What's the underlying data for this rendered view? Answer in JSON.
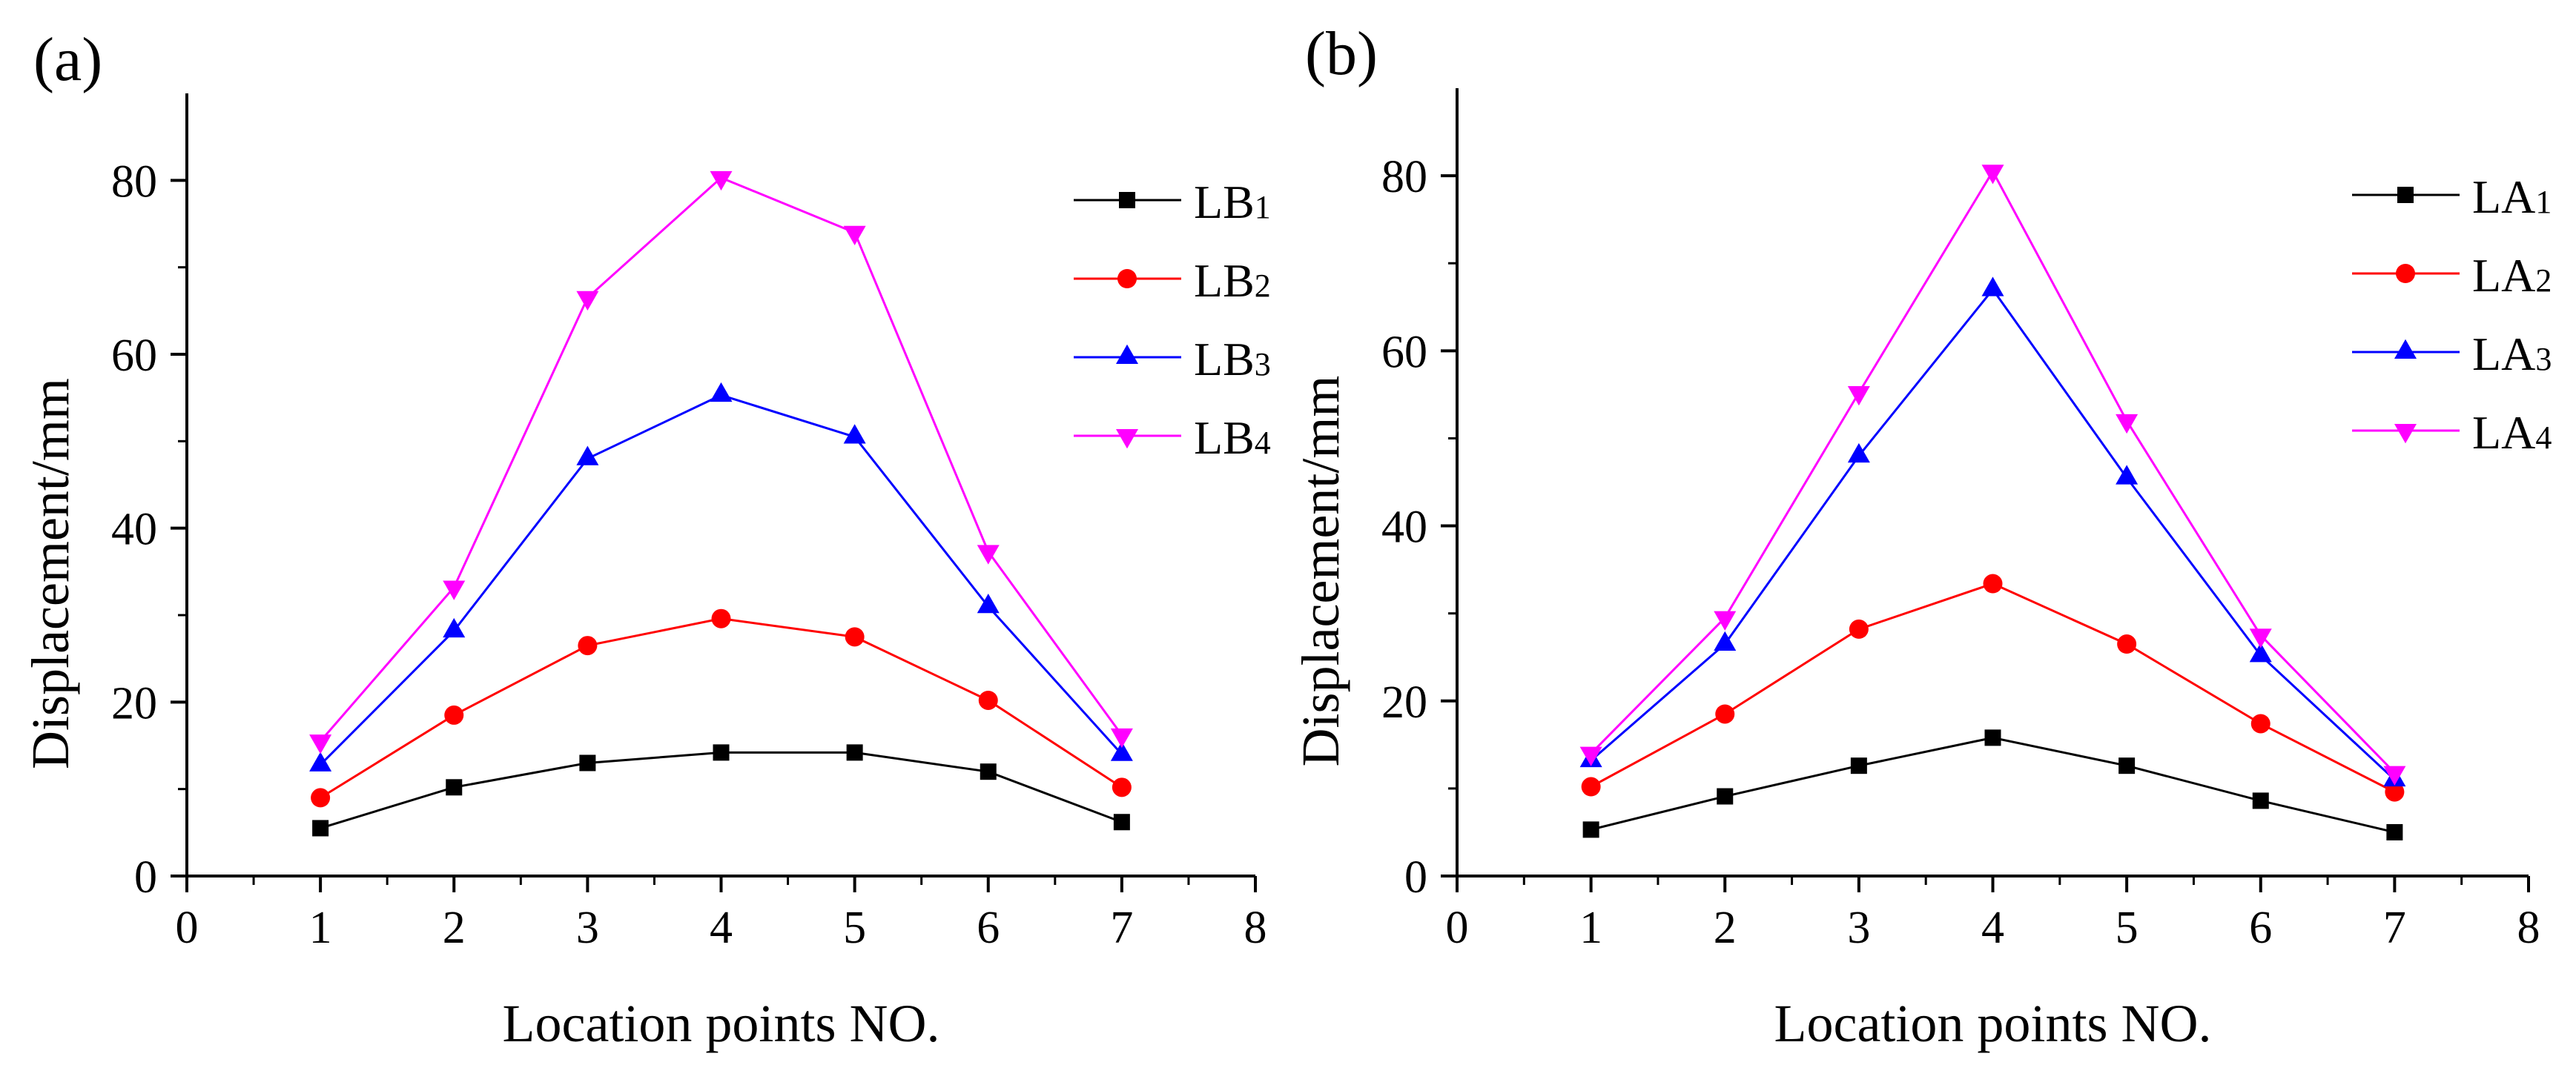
{
  "chart_data": [
    {
      "type": "line",
      "panel_label": "(a)",
      "xlabel": "Location points NO.",
      "ylabel": "Displacement/mm",
      "xlim": [
        0,
        8
      ],
      "ylim": [
        0,
        90
      ],
      "xticks": [
        0,
        1,
        2,
        3,
        4,
        5,
        6,
        7,
        8
      ],
      "yticks": [
        0,
        20,
        40,
        60,
        80
      ],
      "grid": false,
      "legend_position": "top-right",
      "x": [
        1,
        2,
        3,
        4,
        5,
        6,
        7
      ],
      "series": [
        {
          "name": "LB1",
          "name_base": "LB",
          "name_sub": "1",
          "color": "#000000",
          "marker": "square",
          "values": [
            5.5,
            10.2,
            13.0,
            14.2,
            14.2,
            12.0,
            6.2
          ]
        },
        {
          "name": "LB2",
          "name_base": "LB",
          "name_sub": "2",
          "color": "#ff0000",
          "marker": "circle",
          "values": [
            9.0,
            18.5,
            26.5,
            29.6,
            27.5,
            20.2,
            10.2
          ]
        },
        {
          "name": "LB3",
          "name_base": "LB",
          "name_sub": "3",
          "color": "#0000ff",
          "marker": "triangle-up",
          "values": [
            12.8,
            28.2,
            48.0,
            55.3,
            50.5,
            31.0,
            14.0
          ]
        },
        {
          "name": "LB4",
          "name_base": "LB",
          "name_sub": "4",
          "color": "#ff00ff",
          "marker": "triangle-down",
          "values": [
            15.5,
            33.2,
            66.5,
            80.3,
            74.0,
            37.3,
            16.2
          ]
        }
      ]
    },
    {
      "type": "line",
      "panel_label": "(b)",
      "xlabel": "Location points NO.",
      "ylabel": "Displacement/mm",
      "xlim": [
        0,
        8
      ],
      "ylim": [
        0,
        90
      ],
      "xticks": [
        0,
        1,
        2,
        3,
        4,
        5,
        6,
        7,
        8
      ],
      "yticks": [
        0,
        20,
        40,
        60,
        80
      ],
      "grid": false,
      "legend_position": "top-right",
      "x": [
        1,
        2,
        3,
        4,
        5,
        6,
        7
      ],
      "series": [
        {
          "name": "LA1",
          "name_base": "LA",
          "name_sub": "1",
          "color": "#000000",
          "marker": "square",
          "values": [
            5.3,
            9.1,
            12.6,
            15.8,
            12.6,
            8.6,
            5.0
          ]
        },
        {
          "name": "LA2",
          "name_base": "LA",
          "name_sub": "2",
          "color": "#ff0000",
          "marker": "circle",
          "values": [
            10.2,
            18.5,
            28.2,
            33.4,
            26.5,
            17.4,
            9.6
          ]
        },
        {
          "name": "LA3",
          "name_base": "LA",
          "name_sub": "3",
          "color": "#0000ff",
          "marker": "triangle-up",
          "values": [
            13.2,
            26.5,
            48.0,
            67.0,
            45.5,
            25.2,
            11.0
          ]
        },
        {
          "name": "LA4",
          "name_base": "LA",
          "name_sub": "4",
          "color": "#ff00ff",
          "marker": "triangle-down",
          "values": [
            14.0,
            29.5,
            55.2,
            80.5,
            52.0,
            27.5,
            11.8
          ]
        }
      ]
    }
  ]
}
